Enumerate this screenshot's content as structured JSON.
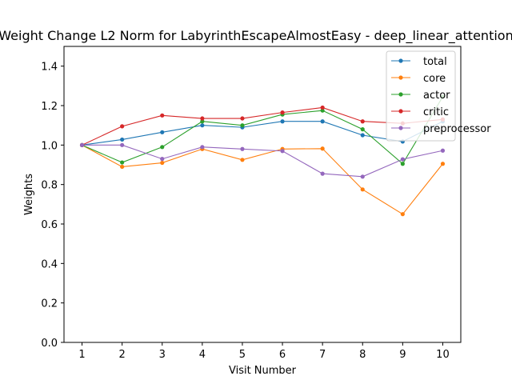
{
  "chart_data": {
    "type": "line",
    "title": "Weight Change L2 Norm for LabyrinthEscapeAlmostEasy - deep_linear_attention",
    "xlabel": "Visit Number",
    "ylabel": "Weights",
    "x": [
      1,
      2,
      3,
      4,
      5,
      6,
      7,
      8,
      9,
      10
    ],
    "xlim": [
      0.55,
      10.45
    ],
    "ylim": [
      0,
      1.5
    ],
    "yticks": [
      0.0,
      0.2,
      0.4,
      0.6,
      0.8,
      1.0,
      1.2,
      1.4
    ],
    "ytick_labels": [
      "0.0",
      "0.2",
      "0.4",
      "0.6",
      "0.8",
      "1.0",
      "1.2",
      "1.4"
    ],
    "xtick_labels": [
      "1",
      "2",
      "3",
      "4",
      "5",
      "6",
      "7",
      "8",
      "9",
      "10"
    ],
    "grid": false,
    "legend_position": "top-right",
    "series": [
      {
        "name": "total",
        "color": "#1f77b4",
        "values": [
          1.0,
          1.028,
          1.065,
          1.1,
          1.09,
          1.12,
          1.12,
          1.05,
          1.018,
          1.12
        ]
      },
      {
        "name": "core",
        "color": "#ff7f0e",
        "values": [
          1.0,
          0.89,
          0.91,
          0.98,
          0.925,
          0.98,
          0.982,
          0.775,
          0.65,
          0.905
        ]
      },
      {
        "name": "actor",
        "color": "#2ca02c",
        "values": [
          1.0,
          0.912,
          0.99,
          1.12,
          1.1,
          1.155,
          1.175,
          1.08,
          0.905,
          1.245
        ]
      },
      {
        "name": "critic",
        "color": "#d62728",
        "values": [
          1.0,
          1.095,
          1.15,
          1.135,
          1.135,
          1.165,
          1.19,
          1.12,
          1.11,
          1.13
        ]
      },
      {
        "name": "preprocessor",
        "color": "#9467bd",
        "values": [
          1.0,
          1.0,
          0.93,
          0.99,
          0.98,
          0.97,
          0.855,
          0.84,
          0.928,
          0.972
        ]
      }
    ]
  }
}
